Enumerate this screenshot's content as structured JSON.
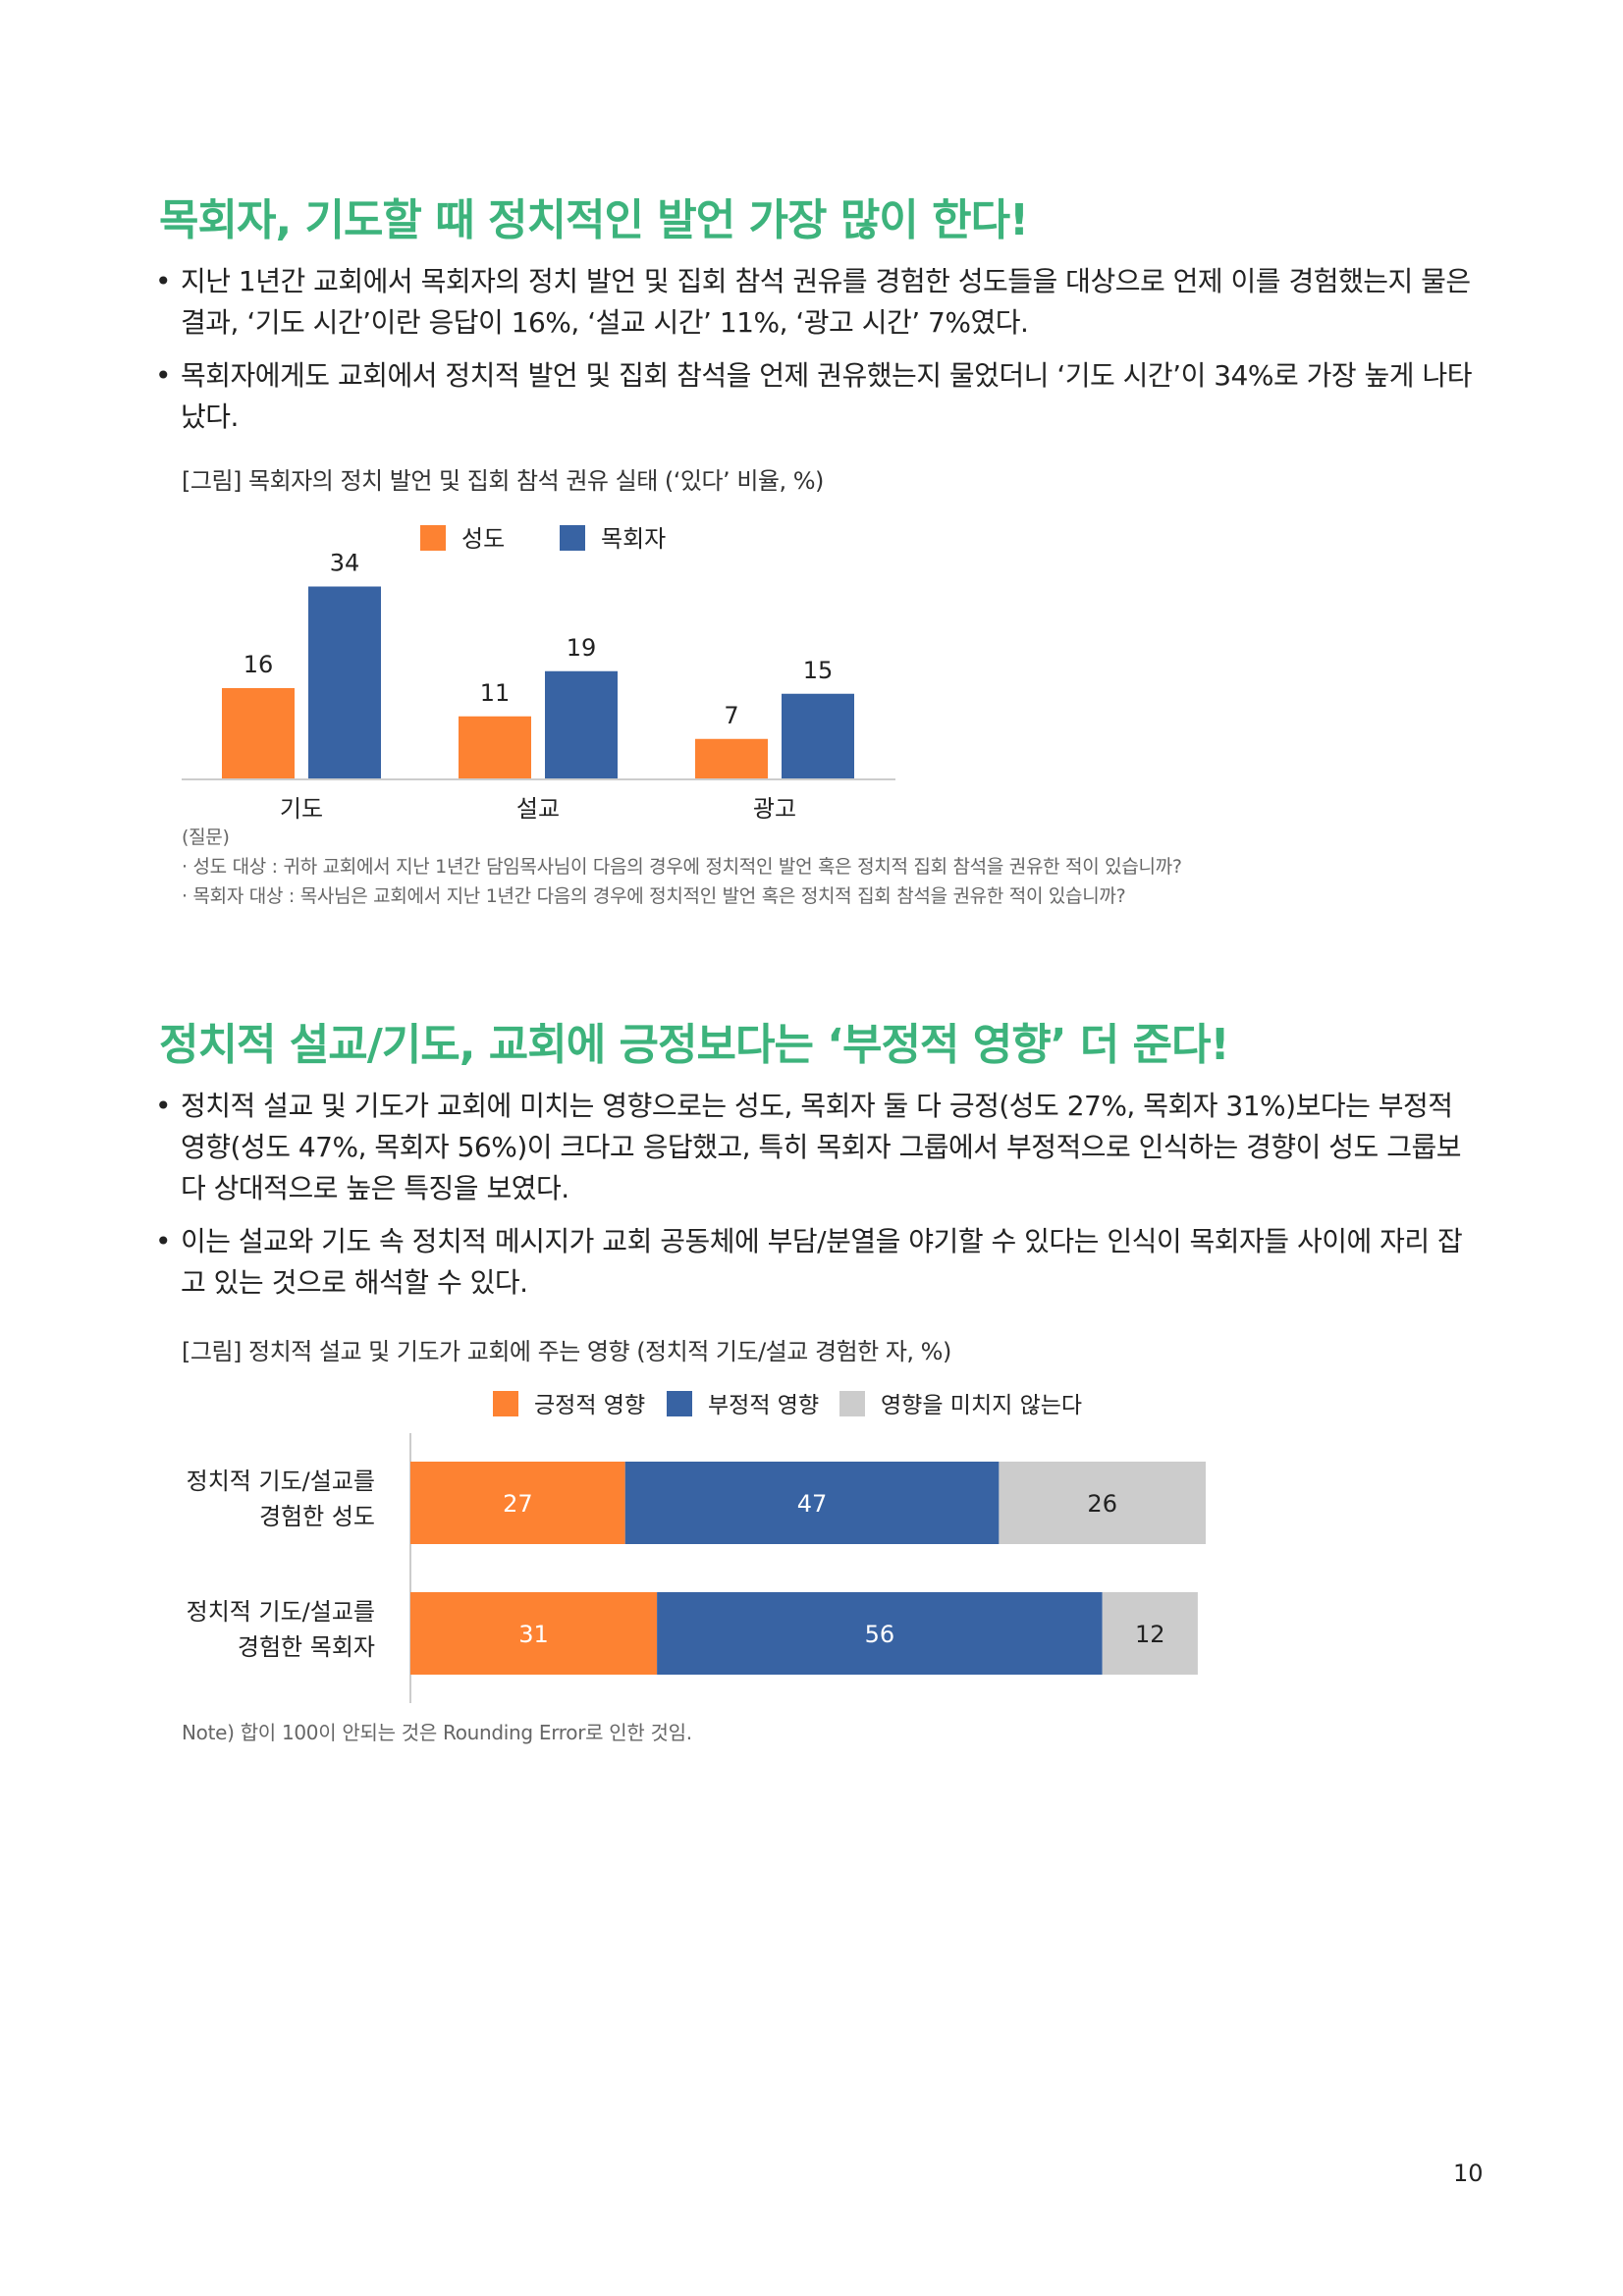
{
  "colors": {
    "heading": "#3db37c",
    "orange": "#fd8232",
    "blue": "#3863a3",
    "gray": "#cccccc"
  },
  "section1": {
    "title": "목회자, 기도할 때 정치적인 발언 가장 많이 한다!",
    "bullets": [
      "지난 1년간 교회에서 목회자의 정치 발언 및 집회 참석 권유를 경험한 성도들을 대상으로 언제 이를 경험했는지 물은 결과, ‘기도 시간’이란 응답이 16%, ‘설교 시간’ 11%, ‘광고 시간’ 7%였다.",
      "목회자에게도 교회에서 정치적 발언 및 집회 참석을 언제 권유했는지 물었더니 ‘기도 시간’이 34%로 가장 높게 나타났다."
    ],
    "caption": "[그림] 목회자의 정치 발언 및 집회 참석 권유 실태 (‘있다’ 비율, %)",
    "notes": [
      "(질문)",
      "· 성도 대상 : 귀하 교회에서 지난 1년간 담임목사님이 다음의 경우에 정치적인 발언 혹은 정치적 집회 참석을 권유한 적이 있습니까?",
      "· 목회자 대상 : 목사님은 교회에서 지난 1년간 다음의 경우에 정치적인 발언 혹은 정치적 집회 참석을 권유한 적이 있습니까?"
    ]
  },
  "section2": {
    "title": "정치적 설교/기도, 교회에 긍정보다는 ‘부정적 영향’ 더 준다!",
    "bullets": [
      "정치적 설교 및 기도가 교회에 미치는 영향으로는 성도, 목회자 둘 다 긍정(성도 27%, 목회자 31%)보다는 부정적 영향(성도 47%, 목회자 56%)이 크다고 응답했고, 특히 목회자 그룹에서 부정적으로 인식하는 경향이 성도 그룹보다 상대적으로 높은 특징을 보였다.",
      "이는 설교와 기도 속 정치적 메시지가 교회 공동체에 부담/분열을 야기할 수 있다는 인식이 목회자들 사이에 자리 잡고 있는 것으로 해석할 수 있다."
    ],
    "caption": "[그림] 정치적 설교 및 기도가 교회에 주는 영향 (정치적 기도/설교 경험한 자, %)",
    "note": "Note) 합이 100이 안되는 것은 Rounding Error로 인한 것임."
  },
  "chart_data": [
    {
      "type": "bar",
      "categories": [
        "기도",
        "설교",
        "광고"
      ],
      "series": [
        {
          "name": "성도",
          "values": [
            16,
            11,
            7
          ],
          "color": "#fd8232"
        },
        {
          "name": "목회자",
          "values": [
            34,
            19,
            15
          ],
          "color": "#3863a3"
        }
      ],
      "legend": "top",
      "grid": false
    },
    {
      "type": "bar",
      "orientation": "horizontal-stacked",
      "categories": [
        [
          "정치적 기도/설교를",
          "경험한 성도"
        ],
        [
          "정치적 기도/설교를",
          "경험한 목회자"
        ]
      ],
      "series": [
        {
          "name": "긍정적 영향",
          "values": [
            27,
            31
          ],
          "color": "#fd8232"
        },
        {
          "name": "부정적 영향",
          "values": [
            47,
            56
          ],
          "color": "#3863a3"
        },
        {
          "name": "영향을 미치지 않는다",
          "values": [
            26,
            12
          ],
          "color": "#cccccc"
        }
      ],
      "legend": "top",
      "grid": false
    }
  ],
  "page_number": "10"
}
